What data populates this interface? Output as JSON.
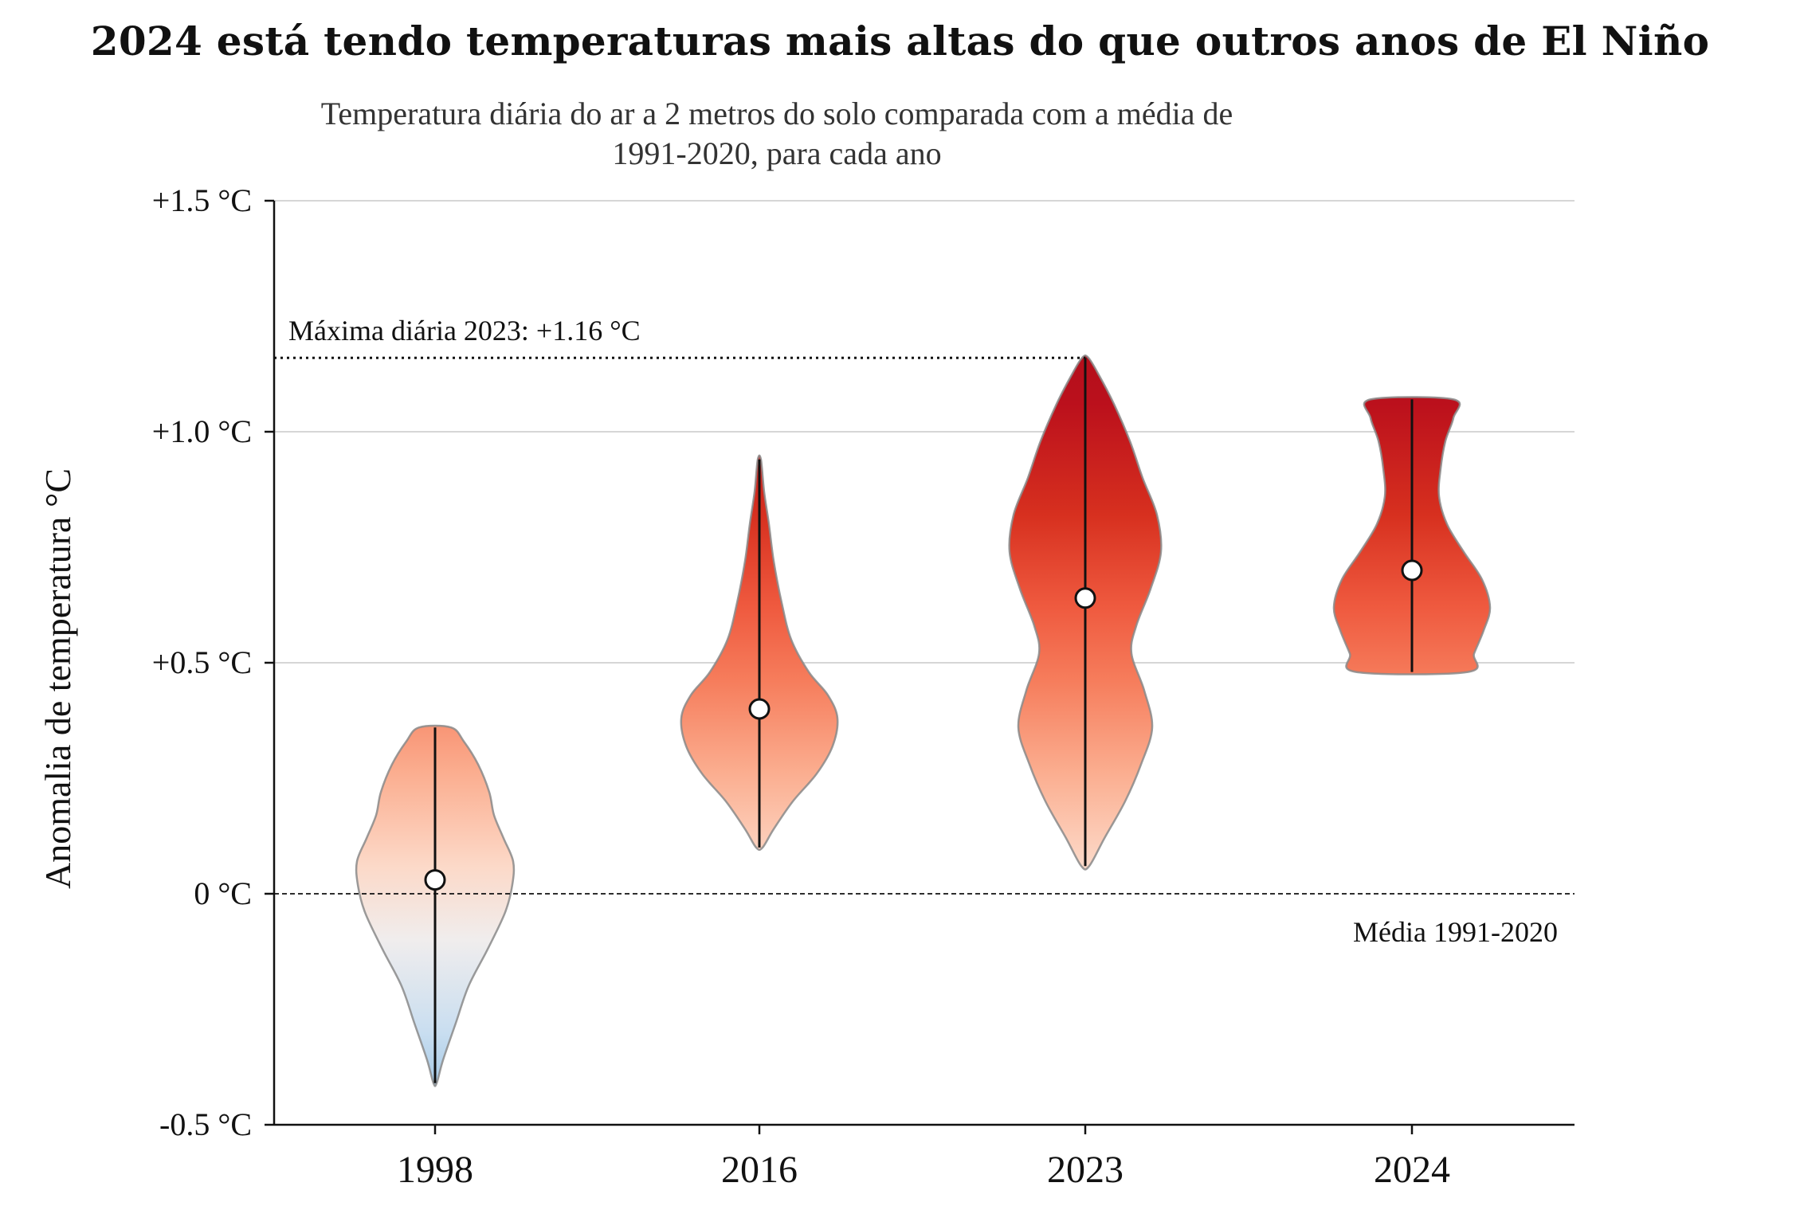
{
  "chart_data": {
    "type": "violin",
    "title": "2024 está tendo temperaturas mais altas do que outros anos de El Niño",
    "subtitle": "Temperatura diária do ar a 2 metros do solo comparada com a média de 1991-2020, para cada ano",
    "ylabel": "Anomalia de temperatura °C",
    "ylim": [
      -0.5,
      1.5
    ],
    "yticks": [
      -0.5,
      0,
      0.5,
      1.0,
      1.5
    ],
    "ytick_labels": [
      "-0.5 °C",
      "0 °C",
      "+0.5 °C",
      "+1.0 °C",
      "+1.5 °C"
    ],
    "grid": "horizontal",
    "categories": [
      "1998",
      "2016",
      "2023",
      "2024"
    ],
    "series": [
      {
        "category": "1998",
        "min": -0.41,
        "max": 0.36,
        "median": 0.03,
        "density": [
          [
            -0.41,
            0.02
          ],
          [
            -0.36,
            0.1
          ],
          [
            -0.28,
            0.26
          ],
          [
            -0.2,
            0.42
          ],
          [
            -0.12,
            0.66
          ],
          [
            -0.04,
            0.88
          ],
          [
            0.02,
            0.97
          ],
          [
            0.07,
            0.98
          ],
          [
            0.12,
            0.86
          ],
          [
            0.17,
            0.74
          ],
          [
            0.22,
            0.68
          ],
          [
            0.28,
            0.54
          ],
          [
            0.33,
            0.36
          ],
          [
            0.36,
            0.2
          ]
        ]
      },
      {
        "category": "2016",
        "min": 0.1,
        "max": 0.94,
        "median": 0.4,
        "density": [
          [
            0.1,
            0.04
          ],
          [
            0.14,
            0.18
          ],
          [
            0.2,
            0.42
          ],
          [
            0.26,
            0.72
          ],
          [
            0.32,
            0.92
          ],
          [
            0.38,
            0.98
          ],
          [
            0.43,
            0.86
          ],
          [
            0.48,
            0.62
          ],
          [
            0.55,
            0.4
          ],
          [
            0.63,
            0.28
          ],
          [
            0.72,
            0.18
          ],
          [
            0.8,
            0.12
          ],
          [
            0.87,
            0.06
          ],
          [
            0.94,
            0.02
          ]
        ]
      },
      {
        "category": "2023",
        "min": 0.06,
        "max": 1.16,
        "median": 0.64,
        "density": [
          [
            0.06,
            0.05
          ],
          [
            0.12,
            0.24
          ],
          [
            0.2,
            0.5
          ],
          [
            0.28,
            0.7
          ],
          [
            0.36,
            0.84
          ],
          [
            0.44,
            0.74
          ],
          [
            0.52,
            0.58
          ],
          [
            0.58,
            0.64
          ],
          [
            0.66,
            0.82
          ],
          [
            0.74,
            0.95
          ],
          [
            0.82,
            0.9
          ],
          [
            0.9,
            0.72
          ],
          [
            0.98,
            0.56
          ],
          [
            1.06,
            0.36
          ],
          [
            1.12,
            0.18
          ],
          [
            1.16,
            0.04
          ]
        ]
      },
      {
        "category": "2024",
        "min": 0.48,
        "max": 1.07,
        "median": 0.7,
        "density": [
          [
            0.48,
            0.7
          ],
          [
            0.52,
            0.78
          ],
          [
            0.57,
            0.9
          ],
          [
            0.62,
            0.98
          ],
          [
            0.68,
            0.88
          ],
          [
            0.74,
            0.65
          ],
          [
            0.8,
            0.44
          ],
          [
            0.86,
            0.34
          ],
          [
            0.92,
            0.36
          ],
          [
            0.98,
            0.42
          ],
          [
            1.03,
            0.52
          ],
          [
            1.07,
            0.52
          ]
        ]
      }
    ],
    "reference_lines": [
      {
        "y": 0,
        "style": "dashed",
        "label": "Média 1991-2020"
      },
      {
        "y": 1.16,
        "style": "dotted",
        "label": "Máxima diária 2023: +1.16 °C"
      }
    ],
    "colormap": "RdBu_r",
    "colors": {
      "cold": "#9ec6e6",
      "neutral": "#f2f0ee",
      "warm_light": "#fbc2a6",
      "warm": "#ef5a3f",
      "hot": "#b20d1b",
      "outline": "#8a8a8a"
    }
  }
}
